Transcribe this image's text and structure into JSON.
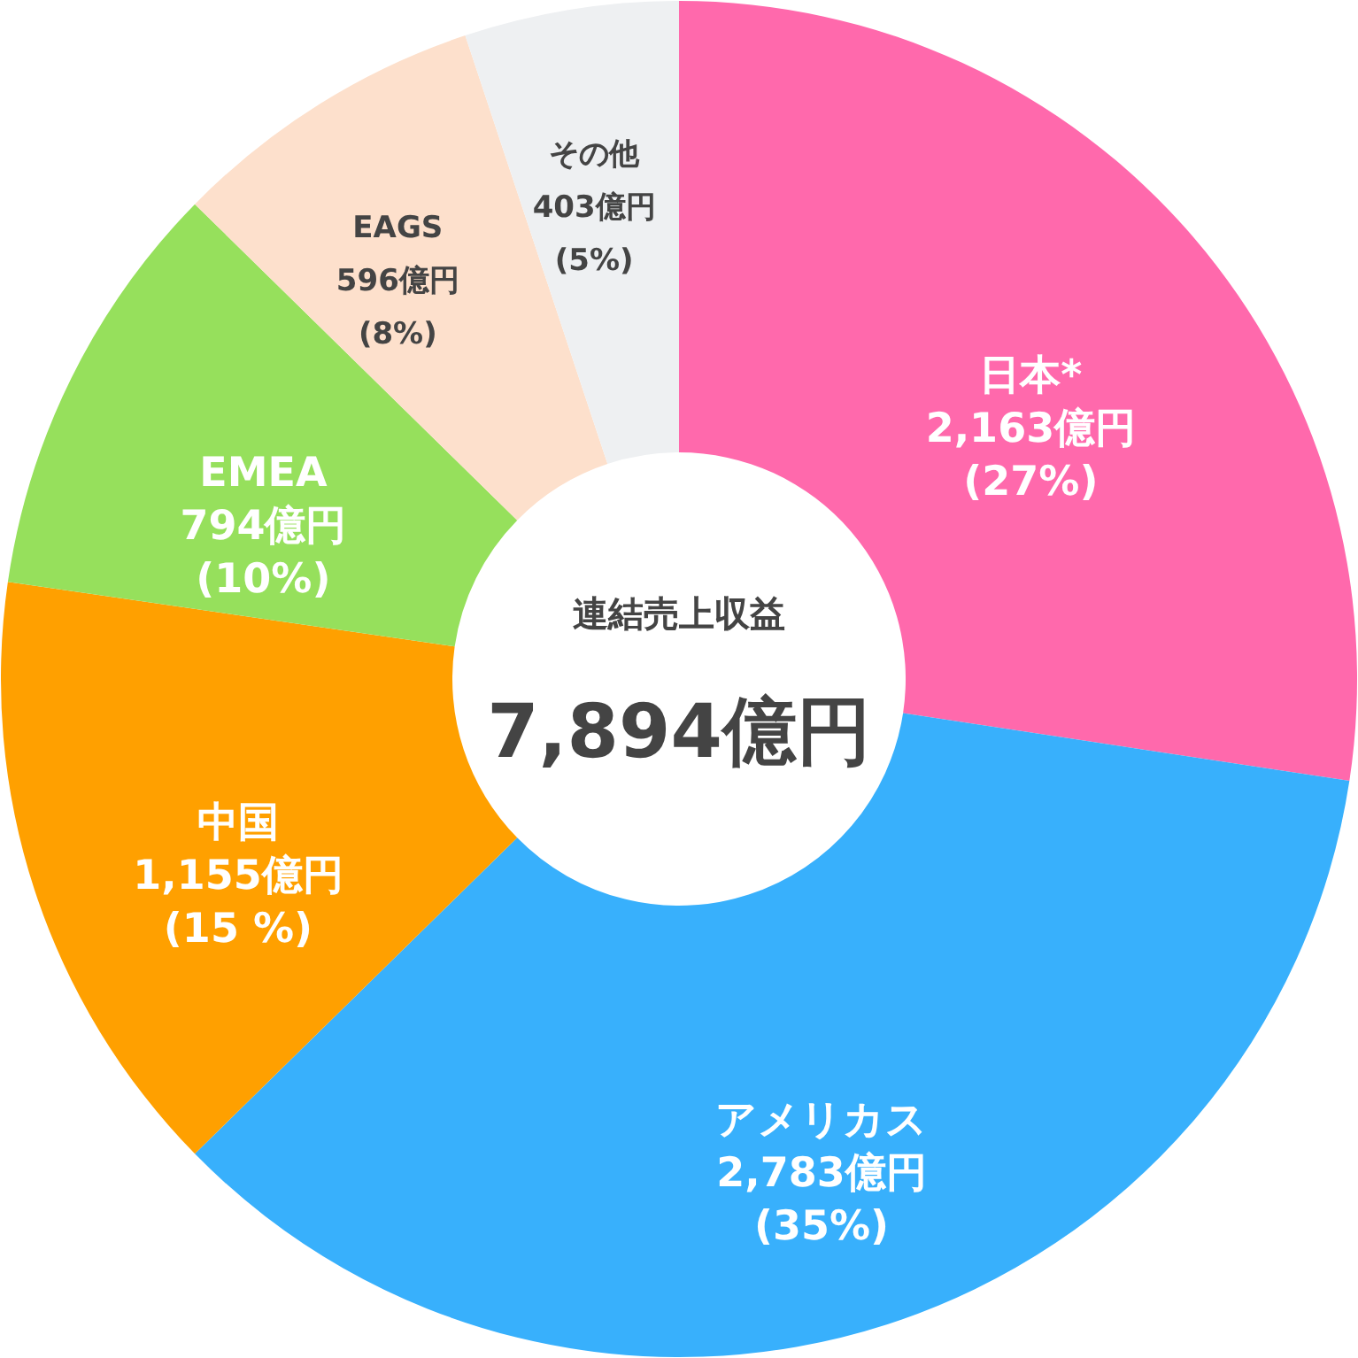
{
  "chart_data": {
    "type": "donut",
    "categories": [
      "日本*",
      "アメリカス",
      "中国",
      "EMEA",
      "EAGS",
      "その他"
    ],
    "values": [
      2163,
      2783,
      1155,
      794,
      596,
      403
    ],
    "colors": [
      "#ff69ac",
      "#38b0fc",
      "#ffa000",
      "#96e05c",
      "#fde0cc",
      "#eef0f2"
    ],
    "value_labels": [
      "2,163億円\n(27%)",
      "2,783億円\n(35%)",
      "1,155億円\n(15 %)",
      "794億円\n(10%)",
      "596億円\n(8%)",
      "403億円\n(5%)"
    ],
    "annotations": [
      "連結売上収益",
      "7,894億円"
    ]
  }
}
